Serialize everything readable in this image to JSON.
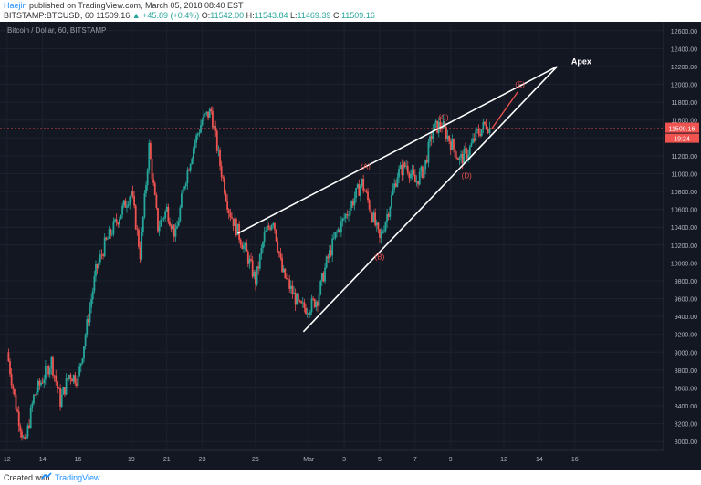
{
  "header": {
    "author": "Haejin",
    "published": "published on TradingView.com, March 05, 2018 08:40 EST",
    "symbol_line": "BITSTAMP:BTCUSD, 60",
    "last": "11509.16",
    "change": "▲ +45.89 (+0.4%)",
    "ohlc": {
      "o_label": "O:",
      "o": "11542.00",
      "h_label": "H:",
      "h": "11543.84",
      "l_label": "L:",
      "l": "11469.39",
      "c_label": "C:",
      "c": "11509.16"
    }
  },
  "chart_title": "Bitcoin / Dollar, 60, BITSTAMP",
  "footer": {
    "created": "Created with",
    "brand": "TradingView"
  },
  "colors": {
    "background": "#131722",
    "grid": "#1e2230",
    "up": "#26a69a",
    "down": "#ef5350",
    "wedge": "#ffffff",
    "label": "#ef5350",
    "price_tag": "#ef5350"
  },
  "chart_data": {
    "type": "candlestick",
    "ylim": [
      7900,
      12700
    ],
    "y_ticks": [
      "12600.00",
      "12400.00",
      "12200.00",
      "12000.00",
      "11800.00",
      "11600.00",
      "11400.00",
      "11200.00",
      "11000.00",
      "10800.00",
      "10600.00",
      "10400.00",
      "10200.00",
      "10000.00",
      "9800.00",
      "9600.00",
      "9400.00",
      "9200.00",
      "9000.00",
      "8800.00",
      "8600.00",
      "8400.00",
      "8200.00",
      "8000.00"
    ],
    "x_ticks": [
      "12",
      "14",
      "16",
      "19",
      "21",
      "23",
      "26",
      "Mar",
      "3",
      "5",
      "7",
      "9",
      "12",
      "14",
      "16"
    ],
    "price_line": {
      "label": "11509.16",
      "countdown": "19:24",
      "value": 11509.16
    },
    "series_close": [
      {
        "day": 0,
        "close": 9000
      },
      {
        "day": 0.5,
        "close": 8400
      },
      {
        "day": 1,
        "close": 7950
      },
      {
        "day": 1.5,
        "close": 8500
      },
      {
        "day": 2,
        "close": 8700
      },
      {
        "day": 2.5,
        "close": 8900
      },
      {
        "day": 3,
        "close": 8450
      },
      {
        "day": 3.5,
        "close": 8750
      },
      {
        "day": 4,
        "close": 8700
      },
      {
        "day": 4.5,
        "close": 9300
      },
      {
        "day": 5,
        "close": 9900
      },
      {
        "day": 5.5,
        "close": 10200
      },
      {
        "day": 6,
        "close": 10400
      },
      {
        "day": 6.5,
        "close": 10600
      },
      {
        "day": 7,
        "close": 10800
      },
      {
        "day": 7.5,
        "close": 10100
      },
      {
        "day": 8,
        "close": 11300
      },
      {
        "day": 8.5,
        "close": 10400
      },
      {
        "day": 9,
        "close": 10600
      },
      {
        "day": 9.5,
        "close": 10300
      },
      {
        "day": 10,
        "close": 10900
      },
      {
        "day": 10.5,
        "close": 11300
      },
      {
        "day": 11,
        "close": 11600
      },
      {
        "day": 11.5,
        "close": 11700
      },
      {
        "day": 12,
        "close": 11100
      },
      {
        "day": 12.5,
        "close": 10600
      },
      {
        "day": 13,
        "close": 10350
      },
      {
        "day": 13.5,
        "close": 10100
      },
      {
        "day": 14,
        "close": 9800
      },
      {
        "day": 14.5,
        "close": 10300
      },
      {
        "day": 15,
        "close": 10500
      },
      {
        "day": 15.5,
        "close": 9900
      },
      {
        "day": 16,
        "close": 9700
      },
      {
        "day": 16.5,
        "close": 9500
      },
      {
        "day": 17,
        "close": 9500
      },
      {
        "day": 17.5,
        "close": 9600
      },
      {
        "day": 18,
        "close": 10000
      },
      {
        "day": 18.5,
        "close": 10300
      },
      {
        "day": 19,
        "close": 10500
      },
      {
        "day": 19.5,
        "close": 10700
      },
      {
        "day": 20,
        "close": 10900
      },
      {
        "day": 20.5,
        "close": 10600
      },
      {
        "day": 21,
        "close": 10250
      },
      {
        "day": 21.5,
        "close": 10600
      },
      {
        "day": 22,
        "close": 11000
      },
      {
        "day": 22.5,
        "close": 11100
      },
      {
        "day": 23,
        "close": 10900
      },
      {
        "day": 23.5,
        "close": 11050
      },
      {
        "day": 24,
        "close": 11500
      },
      {
        "day": 24.5,
        "close": 11550
      },
      {
        "day": 25,
        "close": 11350
      },
      {
        "day": 25.5,
        "close": 11150
      },
      {
        "day": 26,
        "close": 11250
      },
      {
        "day": 26.5,
        "close": 11450
      },
      {
        "day": 27,
        "close": 11560
      },
      {
        "day": 27.2,
        "close": 11509
      }
    ],
    "wedge_upper": [
      {
        "day": 13.0,
        "price": 10330
      },
      {
        "day": 31.0,
        "price": 12200
      }
    ],
    "wedge_lower": [
      {
        "day": 16.7,
        "price": 9230
      },
      {
        "day": 31.0,
        "price": 12200
      }
    ],
    "projection": [
      {
        "day": 27.3,
        "price": 11500
      },
      {
        "day": 28.8,
        "price": 11920
      }
    ],
    "wave_labels": [
      {
        "text": "(A)",
        "day": 20.2,
        "price": 11050
      },
      {
        "text": "(B)",
        "day": 21.0,
        "price": 10040
      },
      {
        "text": "(C)",
        "day": 24.6,
        "price": 11600
      },
      {
        "text": "(D)",
        "day": 25.9,
        "price": 10950
      },
      {
        "text": "(E)",
        "day": 28.9,
        "price": 11970
      }
    ],
    "apex_label": {
      "text": "Apex",
      "day": 31.8,
      "price": 12225
    }
  }
}
